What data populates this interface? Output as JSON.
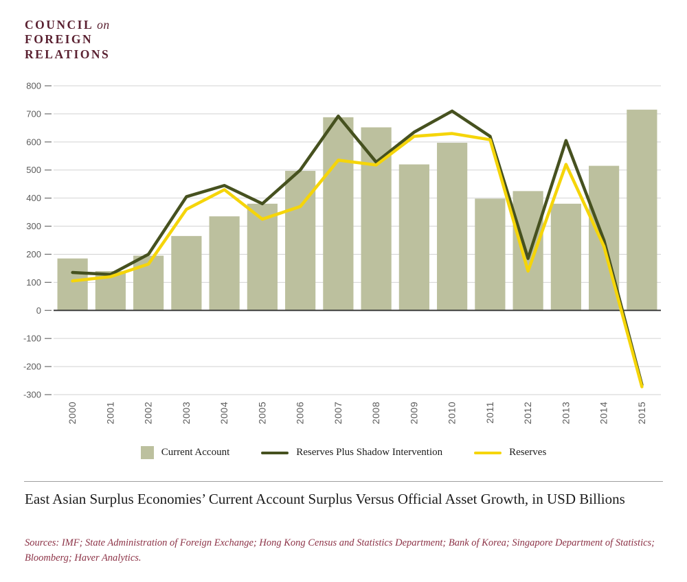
{
  "logo": {
    "council": "COUNCIL",
    "on": "on",
    "foreign": "FOREIGN",
    "relations": "RELATIONS"
  },
  "chart_data": {
    "type": "bar+line",
    "title": "East Asian Surplus Economies’ Current Account Surplus Versus Official Asset Growth, in USD Billions",
    "categories": [
      "2000",
      "2001",
      "2002",
      "2003",
      "2004",
      "2005",
      "2006",
      "2007",
      "2008",
      "2009",
      "2010",
      "2011",
      "2012",
      "2013",
      "2014",
      "2015"
    ],
    "series": [
      {
        "name": "Current Account",
        "type": "bar",
        "color": "#bcc09e",
        "values": [
          185,
          140,
          195,
          265,
          335,
          380,
          497,
          688,
          652,
          520,
          597,
          398,
          425,
          380,
          515,
          715
        ]
      },
      {
        "name": "Reserves Plus Shadow Intervention",
        "type": "line",
        "color": "#46511f",
        "values": [
          135,
          128,
          200,
          405,
          445,
          380,
          500,
          692,
          528,
          635,
          710,
          620,
          185,
          605,
          250,
          -265
        ]
      },
      {
        "name": "Reserves",
        "type": "line",
        "color": "#f5d50a",
        "values": [
          105,
          120,
          165,
          360,
          430,
          325,
          370,
          535,
          518,
          620,
          630,
          608,
          140,
          520,
          228,
          -272
        ]
      }
    ],
    "xlabel": "",
    "ylabel": "",
    "ylim": [
      -300,
      800
    ],
    "ytick_step": 100,
    "grid": true,
    "legend_position": "bottom"
  },
  "caption": {
    "title": "East Asian Surplus Economies’ Current Account Surplus Versus Official Asset Growth, in USD Billions",
    "sources": "Sources: IMF; State Administration of Foreign Exchange; Hong Kong Census and Statistics Department; Bank of Korea; Singapore Department of Statistics; Bloomberg; Haver Analytics."
  }
}
